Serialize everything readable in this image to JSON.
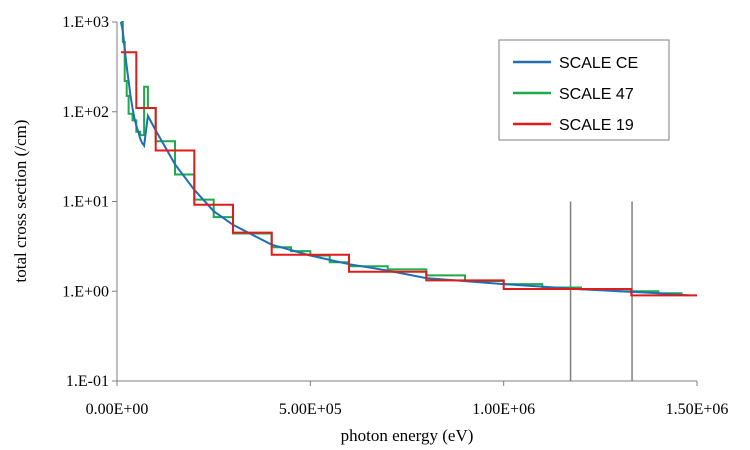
{
  "chart_data": {
    "type": "line",
    "title": "",
    "xlabel": "photon energy  (eV)",
    "ylabel": "total cross section (/cm)",
    "x_scale": "linear",
    "y_scale": "log",
    "xlim": [
      0,
      1500000
    ],
    "ylim": [
      0.1,
      1000
    ],
    "x_ticks": [
      0,
      500000,
      1000000,
      1500000
    ],
    "x_tick_labels": [
      "0.00E+00",
      "5.00E+05",
      "1.00E+06",
      "1.50E+06"
    ],
    "y_ticks": [
      0.1,
      1,
      10,
      100,
      1000
    ],
    "y_tick_labels": [
      "1.E-01",
      "1.E+00",
      "1.E+01",
      "1.E+02",
      "1.E+03"
    ],
    "grid": false,
    "legend_position": "top-right",
    "colors": {
      "scale_ce": "#1f6fb4",
      "scale_47": "#1faa4a",
      "scale_19": "#e01b1b",
      "lines": "#7f7f7f"
    },
    "vertical_lines": [
      {
        "x": 1173000,
        "y_from": 0.1,
        "y_to": 10
      },
      {
        "x": 1332000,
        "y_from": 0.1,
        "y_to": 10
      }
    ],
    "series": [
      {
        "name": "SCALE CE",
        "style": "line",
        "x": [
          10000,
          15000,
          20000,
          25000,
          30000,
          35000,
          40000,
          45000,
          50000,
          55000,
          60000,
          65000,
          70000,
          80000,
          100000,
          150000,
          200000,
          250000,
          300000,
          400000,
          500000,
          600000,
          700000,
          800000,
          1000000,
          1200000,
          1400000,
          1480000
        ],
        "y": [
          1000,
          800,
          500,
          320,
          220,
          150,
          110,
          85,
          70,
          60,
          50,
          45,
          42,
          90,
          62,
          26,
          13.5,
          7.8,
          5.5,
          3.3,
          2.5,
          2.0,
          1.7,
          1.4,
          1.2,
          1.05,
          0.95,
          0.9
        ]
      },
      {
        "name": "SCALE 47",
        "style": "step",
        "x": [
          10000,
          15000,
          20000,
          25000,
          30000,
          40000,
          50000,
          60000,
          70000,
          80000,
          100000,
          150000,
          200000,
          250000,
          300000,
          400000,
          450000,
          500000,
          550000,
          600000,
          700000,
          800000,
          900000,
          1000000,
          1100000,
          1200000,
          1300000,
          1400000,
          1460000
        ],
        "y": [
          1000,
          600,
          220,
          150,
          95,
          80,
          60,
          55,
          190,
          110,
          47,
          20,
          10.5,
          6.7,
          4.4,
          3.1,
          2.8,
          2.5,
          2.1,
          1.9,
          1.75,
          1.5,
          1.3,
          1.2,
          1.1,
          1.05,
          1.0,
          0.95,
          0.92
        ]
      },
      {
        "name": "SCALE 19",
        "style": "step",
        "x": [
          10000,
          40000,
          50000,
          100000,
          200000,
          300000,
          400000,
          600000,
          800000,
          1000000,
          1330000,
          1500000
        ],
        "y": [
          460,
          460,
          110,
          37,
          9.2,
          4.5,
          2.55,
          1.65,
          1.32,
          1.06,
          0.9,
          0.9
        ]
      }
    ]
  }
}
